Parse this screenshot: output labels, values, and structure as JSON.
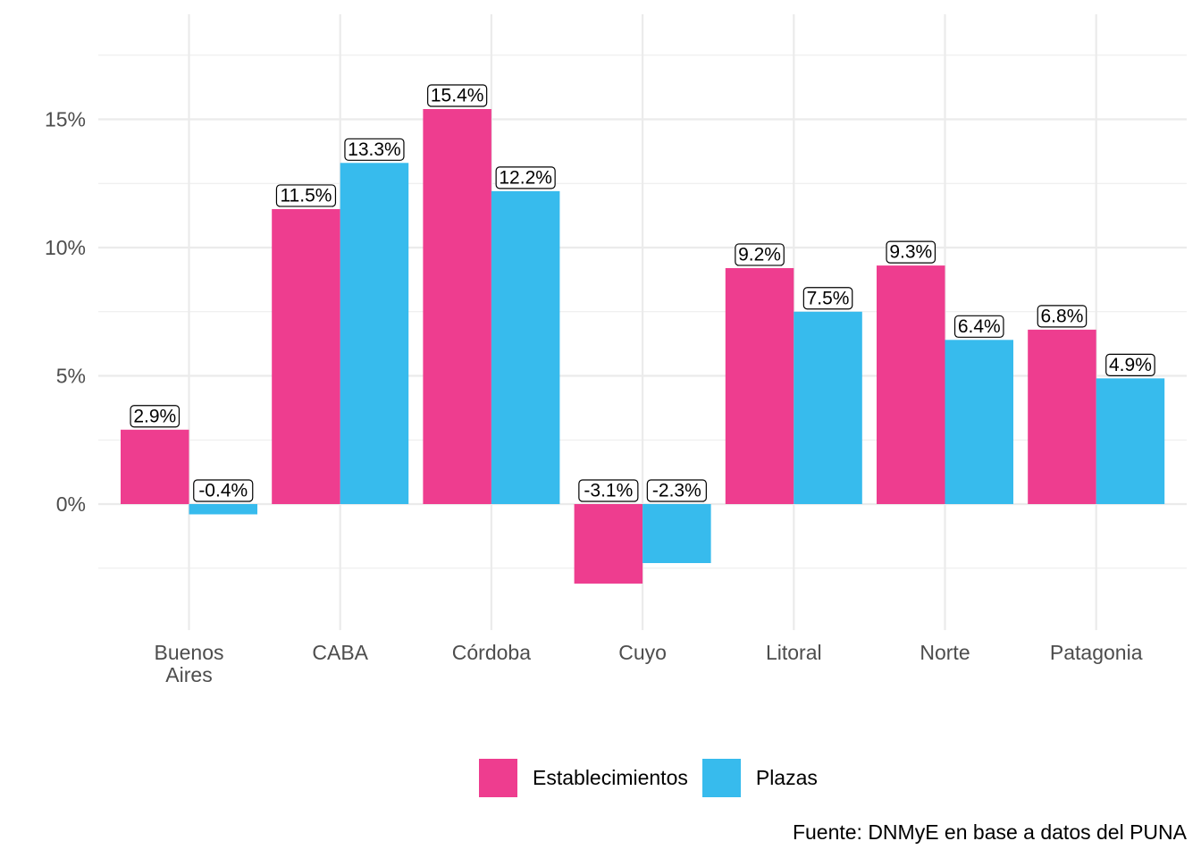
{
  "chart_data": {
    "type": "bar",
    "title": "",
    "xlabel": "",
    "ylabel": "",
    "categories": [
      [
        "Buenos",
        "Aires"
      ],
      [
        "CABA"
      ],
      [
        "Córdoba"
      ],
      [
        "Cuyo"
      ],
      [
        "Litoral"
      ],
      [
        "Norte"
      ],
      [
        "Patagonia"
      ]
    ],
    "series": [
      {
        "name": "Establecimientos",
        "color": "#ee3d8f",
        "values": [
          2.9,
          11.5,
          15.4,
          -3.1,
          9.2,
          9.3,
          6.8
        ],
        "labels": [
          "2.9%",
          "11.5%",
          "15.4%",
          "-3.1%",
          "9.2%",
          "9.3%",
          "6.8%"
        ]
      },
      {
        "name": "Plazas",
        "color": "#37bbed",
        "values": [
          -0.4,
          13.3,
          12.2,
          -2.3,
          7.5,
          6.4,
          4.9
        ],
        "labels": [
          "-0.4%",
          "13.3%",
          "12.2%",
          "-2.3%",
          "7.5%",
          "6.4%",
          "4.9%"
        ]
      }
    ],
    "yticks": [
      0,
      5,
      10,
      15
    ],
    "ytick_labels": [
      "0%",
      "5%",
      "10%",
      "15%"
    ],
    "ylim": [
      -4.9,
      19.6
    ],
    "grid": true,
    "legend_position": "bottom",
    "caption": "Fuente: DNMyE en base a datos del PUNA"
  }
}
